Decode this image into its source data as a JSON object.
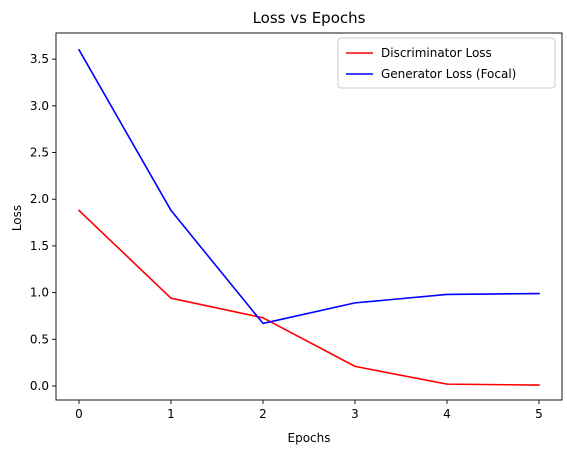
{
  "chart_data": {
    "type": "line",
    "title": "Loss vs Epochs",
    "xlabel": "Epochs",
    "ylabel": "Loss",
    "x": [
      0,
      1,
      2,
      3,
      4,
      5
    ],
    "xticks": [
      "0",
      "1",
      "2",
      "3",
      "4",
      "5"
    ],
    "yticks": [
      "0.0",
      "0.5",
      "1.0",
      "1.5",
      "2.0",
      "2.5",
      "3.0",
      "3.5"
    ],
    "xlim": [
      -0.25,
      5.25
    ],
    "ylim": [
      -0.15,
      3.78
    ],
    "grid": false,
    "legend_position": "top-right",
    "series": [
      {
        "name": "Discriminator Loss",
        "color": "#ff0000",
        "values": [
          1.88,
          0.94,
          0.73,
          0.21,
          0.02,
          0.01
        ]
      },
      {
        "name": "Generator Loss (Focal)",
        "color": "#0000ff",
        "values": [
          3.6,
          1.88,
          0.67,
          0.89,
          0.98,
          0.99
        ]
      }
    ]
  }
}
